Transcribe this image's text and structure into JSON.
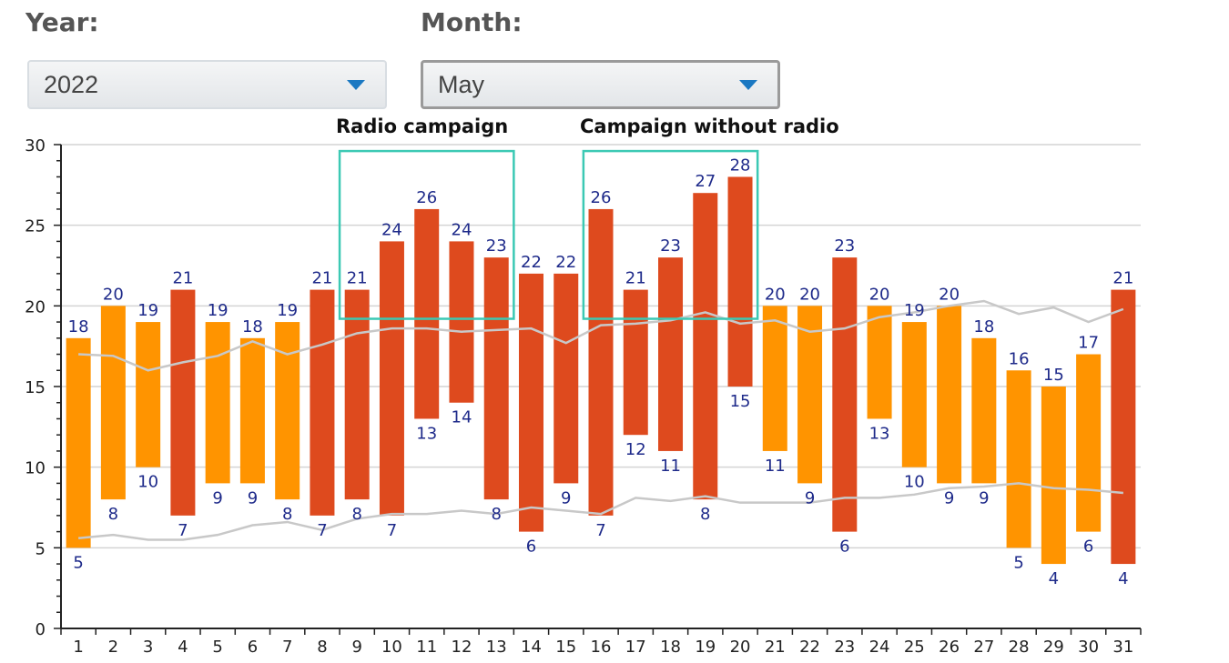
{
  "filters": {
    "year_label": "Year:",
    "year_value": "2022",
    "month_label": "Month:",
    "month_value": "May"
  },
  "annotations": {
    "radio": "Radio campaign",
    "no_radio": "Campaign without radio"
  },
  "colors": {
    "orange": "#ff9400",
    "red": "#de4a1e",
    "line": "#c8c8c8",
    "box": "#3cc9b4",
    "label": "#1e2a8a"
  },
  "chart_data": {
    "type": "bar",
    "title": "",
    "xlabel": "",
    "ylabel": "",
    "ylim": [
      0,
      30
    ],
    "yticks": [
      0,
      5,
      10,
      15,
      20,
      25,
      30
    ],
    "grid": "horizontal",
    "categories": [
      "1",
      "2",
      "3",
      "4",
      "5",
      "6",
      "7",
      "8",
      "9",
      "10",
      "11",
      "12",
      "13",
      "14",
      "15",
      "16",
      "17",
      "18",
      "19",
      "20",
      "21",
      "22",
      "23",
      "24",
      "25",
      "26",
      "27",
      "28",
      "29",
      "30",
      "31"
    ],
    "high": [
      18,
      20,
      19,
      21,
      19,
      18,
      19,
      21,
      21,
      24,
      26,
      24,
      23,
      22,
      22,
      26,
      21,
      23,
      27,
      28,
      20,
      20,
      23,
      20,
      19,
      20,
      18,
      16,
      15,
      17,
      21
    ],
    "low": [
      5,
      8,
      10,
      7,
      9,
      9,
      8,
      7,
      8,
      7,
      13,
      14,
      8,
      6,
      9,
      7,
      12,
      11,
      8,
      15,
      11,
      9,
      6,
      13,
      10,
      9,
      9,
      5,
      4,
      6,
      4
    ],
    "color_group": [
      "orange",
      "orange",
      "orange",
      "red",
      "orange",
      "orange",
      "orange",
      "red",
      "red",
      "red",
      "red",
      "red",
      "red",
      "red",
      "red",
      "red",
      "red",
      "red",
      "red",
      "red",
      "orange",
      "orange",
      "red",
      "orange",
      "orange",
      "orange",
      "orange",
      "orange",
      "orange",
      "orange",
      "red"
    ],
    "reference_lines": [
      {
        "values": [
          17,
          16.9,
          16,
          16.5,
          16.9,
          17.8,
          17,
          17.6,
          18.3,
          18.6,
          18.6,
          18.4,
          18.5,
          18.6,
          17.7,
          18.8,
          18.9,
          19.1,
          19.6,
          18.9,
          19.1,
          18.4,
          18.6,
          19.3,
          19.6,
          20,
          20.3,
          19.5,
          19.9,
          19,
          19.8
        ]
      },
      {
        "values": [
          5.6,
          5.8,
          5.5,
          5.5,
          5.8,
          6.4,
          6.6,
          6.1,
          6.8,
          7.1,
          7.1,
          7.3,
          7.1,
          7.5,
          7.3,
          7.1,
          8.1,
          7.9,
          8.2,
          7.8,
          7.8,
          7.8,
          8.1,
          8.1,
          8.3,
          8.7,
          8.8,
          9,
          8.7,
          8.6,
          8.4
        ]
      }
    ],
    "highlight_ranges": [
      {
        "label": "Radio campaign",
        "from_day": 9,
        "to_day": 13,
        "y_from": 19.2,
        "y_to": 29.6
      },
      {
        "label": "Campaign without radio",
        "from_day": 16,
        "to_day": 20,
        "y_from": 19.2,
        "y_to": 29.6
      }
    ]
  }
}
